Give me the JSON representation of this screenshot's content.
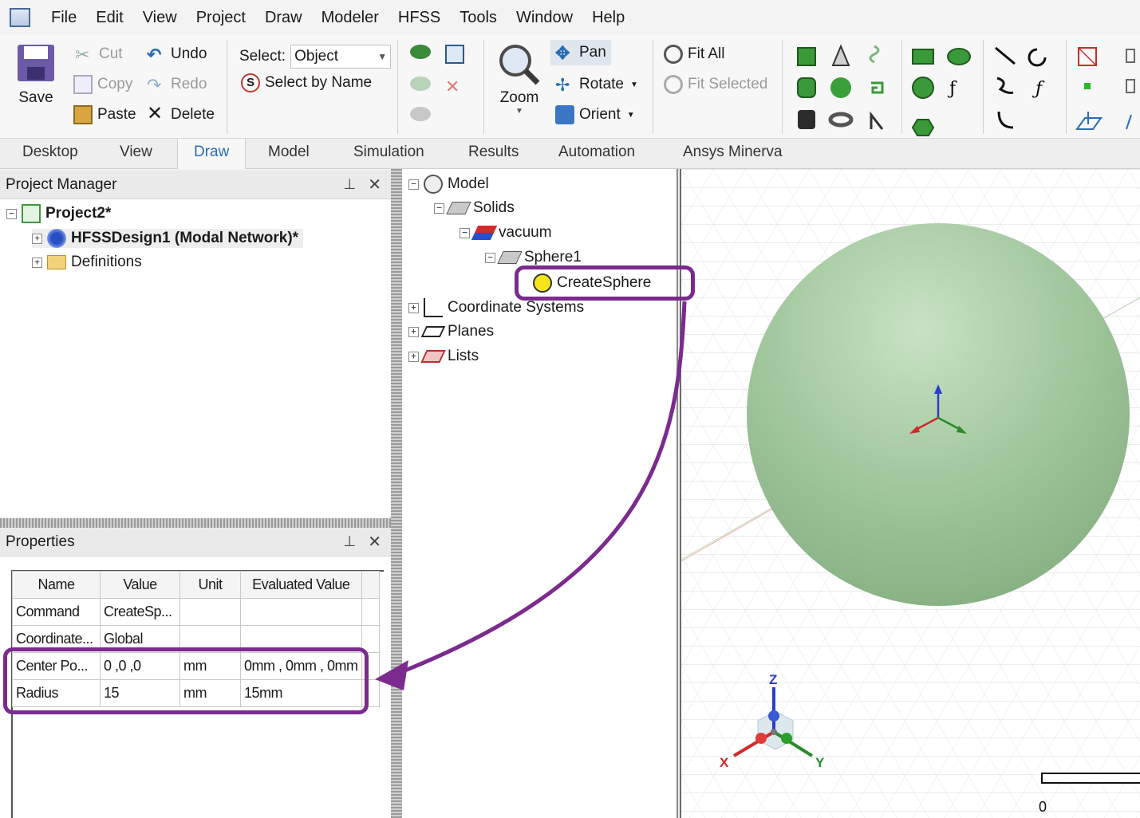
{
  "menu": [
    "File",
    "Edit",
    "View",
    "Project",
    "Draw",
    "Modeler",
    "HFSS",
    "Tools",
    "Window",
    "Help"
  ],
  "ribbon": {
    "save": "Save",
    "cut": "Cut",
    "copy": "Copy",
    "paste": "Paste",
    "undo": "Undo",
    "redo": "Redo",
    "delete": "Delete",
    "select_label": "Select:",
    "select_value": "Object",
    "select_by_name": "Select by Name",
    "zoom": "Zoom",
    "pan": "Pan",
    "rotate": "Rotate",
    "orient": "Orient",
    "fit_all": "Fit All",
    "fit_selected": "Fit Selected"
  },
  "tabs": [
    "Desktop",
    "View",
    "Draw",
    "Model",
    "Simulation",
    "Results",
    "Automation",
    "Ansys Minerva"
  ],
  "active_tab": "Draw",
  "project_manager": {
    "title": "Project Manager",
    "project": "Project2*",
    "design": "HFSSDesign1 (Modal Network)*",
    "definitions": "Definitions"
  },
  "properties": {
    "title": "Properties",
    "columns": [
      "Name",
      "Value",
      "Unit",
      "Evaluated Value"
    ],
    "rows": [
      [
        "Command",
        "CreateSp...",
        "",
        ""
      ],
      [
        "Coordinate...",
        "Global",
        "",
        ""
      ],
      [
        "Center Po...",
        "0 ,0 ,0",
        "mm",
        "0mm , 0mm , 0mm"
      ],
      [
        "Radius",
        "15",
        "mm",
        "15mm"
      ]
    ]
  },
  "model_tree": {
    "model": "Model",
    "solids": "Solids",
    "vacuum": "vacuum",
    "sphere": "Sphere1",
    "create": "CreateSphere",
    "coord": "Coordinate Systems",
    "planes": "Planes",
    "lists": "Lists"
  },
  "viewport": {
    "triad_z": "Z",
    "triad_x": "X",
    "triad_y": "Y",
    "scale_zero": "0"
  },
  "colors": {
    "highlight": "#7b2a8e",
    "sphere": "#9cc39a",
    "accent": "#2a6db6"
  }
}
